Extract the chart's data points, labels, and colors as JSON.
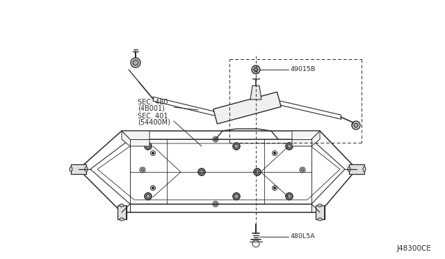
{
  "bg_color": "#ffffff",
  "line_color": "#2a2a2a",
  "diagram_code": "J48300CE",
  "labels": {
    "part1": "49015B",
    "part2": "480L5A",
    "sec1_line1": "SEC. 480",
    "sec1_line2": "(4B001)",
    "sec2_line1": "SEC. 401",
    "sec2_line2": "(54400M)"
  },
  "figsize": [
    6.4,
    3.72
  ],
  "dpi": 100
}
